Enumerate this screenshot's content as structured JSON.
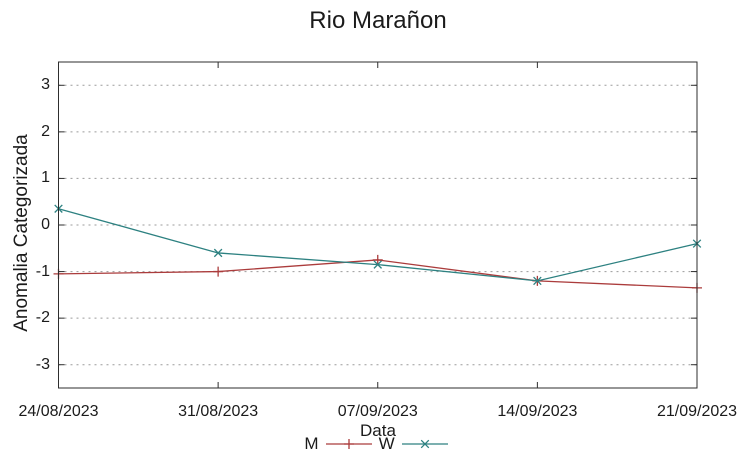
{
  "chart_data": {
    "type": "line",
    "title": "Rio Marañon",
    "xlabel": "Data",
    "ylabel": "Anomalia Categorizada",
    "categories": [
      "24/08/2023",
      "31/08/2023",
      "07/09/2023",
      "14/09/2023",
      "21/09/2023"
    ],
    "y_ticks": [
      -3,
      -2,
      -1,
      0,
      1,
      2,
      3
    ],
    "ylim": [
      -3.5,
      3.5
    ],
    "grid": "horizontal-dotted",
    "legend_position": "bottom-center",
    "series": [
      {
        "name": "M",
        "marker": "plus",
        "color": "#ab3c3c",
        "values": [
          -1.05,
          -1.0,
          -0.75,
          -1.2,
          -1.35
        ]
      },
      {
        "name": "W",
        "marker": "cross",
        "color": "#2d8181",
        "values": [
          0.35,
          -0.6,
          -0.85,
          -1.2,
          -0.4
        ]
      }
    ]
  },
  "colors": {
    "background": "#ffffff",
    "axis": "#2e2e2e",
    "grid": "#9b9b9b",
    "text": "#1b1b1b"
  }
}
